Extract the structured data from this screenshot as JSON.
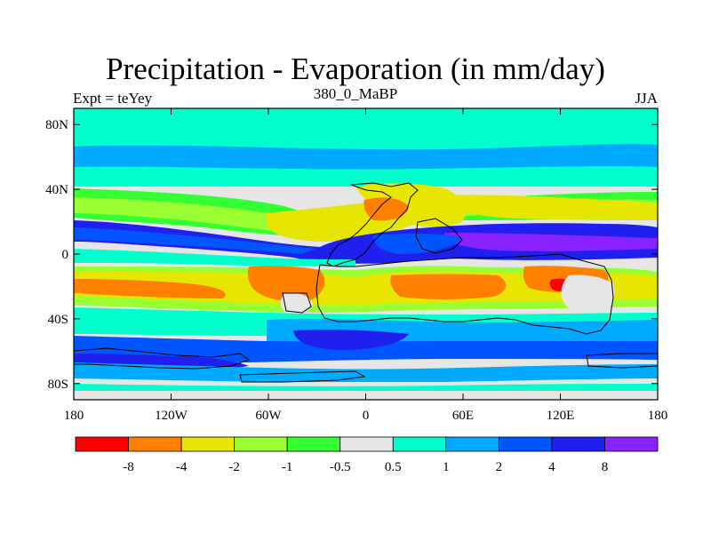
{
  "title": "Precipitation - Evaporation (in mm/day)",
  "subtitle_left": "Expt = teYey",
  "subtitle_center": "380_0_MaBP",
  "subtitle_right": "JJA",
  "axes": {
    "x_ticks": [
      {
        "value": -180,
        "label": "180"
      },
      {
        "value": -120,
        "label": "120W"
      },
      {
        "value": -60,
        "label": "60W"
      },
      {
        "value": 0,
        "label": "0"
      },
      {
        "value": 60,
        "label": "60E"
      },
      {
        "value": 120,
        "label": "120E"
      },
      {
        "value": 180,
        "label": "180"
      }
    ],
    "y_ticks": [
      {
        "value": 80,
        "label": "80N"
      },
      {
        "value": 40,
        "label": "40N"
      },
      {
        "value": 0,
        "label": "0"
      },
      {
        "value": -40,
        "label": "40S"
      },
      {
        "value": -80,
        "label": "80S"
      }
    ],
    "xlim": [
      -180,
      180
    ],
    "ylim": [
      -90,
      90
    ]
  },
  "colorbar": {
    "colors": [
      "#ff0000",
      "#ff8000",
      "#e6e600",
      "#99ff33",
      "#33ff33",
      "#e6e6e6",
      "#00ffcc",
      "#00aaff",
      "#0055ff",
      "#2020ee",
      "#8822ff"
    ],
    "labels": [
      "-8",
      "-4",
      "-2",
      "-1",
      "-0.5",
      "0.5",
      "1",
      "2",
      "4",
      "8"
    ]
  }
}
